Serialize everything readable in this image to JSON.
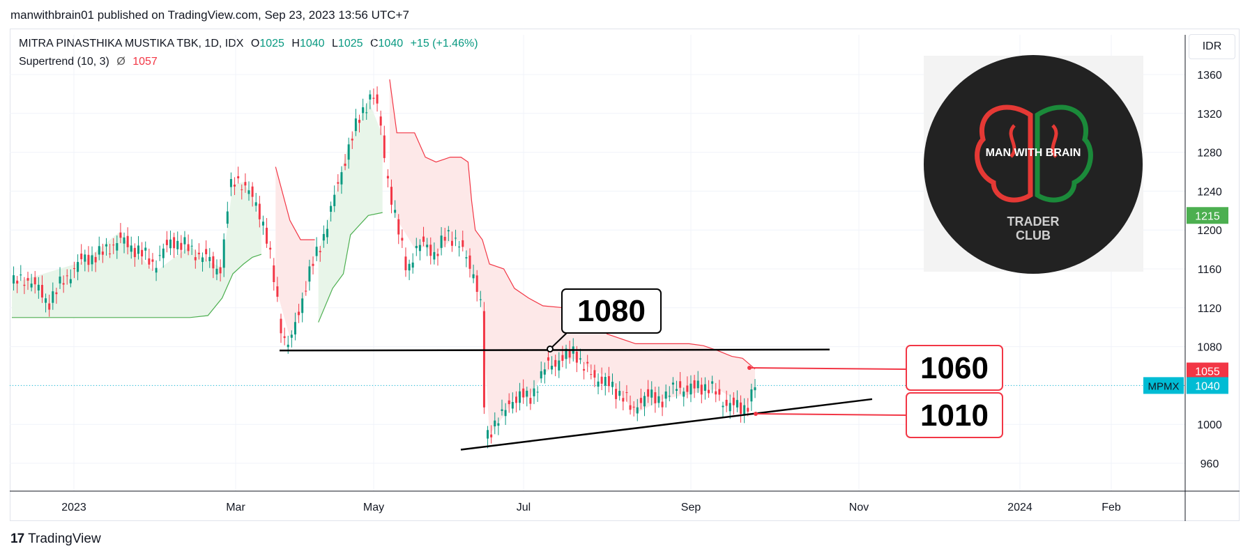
{
  "header": {
    "publish_line": "manwithbrain01 published on TradingView.com, Sep 23, 2023 13:56 UTC+7"
  },
  "legend": {
    "symbol_line": "MITRA PINASTHIKA MUSTIKA TBK, 1D, IDX",
    "o_key": "O",
    "o_val": "1025",
    "h_key": "H",
    "h_val": "1040",
    "l_key": "L",
    "l_val": "1025",
    "c_key": "C",
    "c_val": "1040",
    "change": "+15 (+1.46%)",
    "indicator": "Supertrend (10, 3)",
    "indicator_symbol": "Ø",
    "indicator_value": "1057"
  },
  "currency_button": "IDR",
  "logo": {
    "line1": "MAN WITH BRAIN",
    "line2": "TRADER",
    "line3": "CLUB"
  },
  "footer": {
    "brand": "TradingView",
    "brand_mark": "17"
  },
  "colors": {
    "up": "#089981",
    "down": "#f23645",
    "up_fill": "#e8f5e9",
    "down_fill": "#fde8e8",
    "green_tag": "#4caf50",
    "red_tag": "#f23645",
    "cyan_tag": "#00bcd4"
  },
  "chart_data": {
    "type": "candlestick",
    "symbol": "MPMX",
    "timeframe": "1D",
    "y_axis": {
      "ticks": [
        "1360",
        "1320",
        "1280",
        "1240",
        "1200",
        "1160",
        "1120",
        "1080",
        "1040",
        "1000",
        "960"
      ],
      "range": [
        935,
        1380
      ]
    },
    "x_axis": {
      "ticks": [
        "2023",
        "Mar",
        "May",
        "Jul",
        "Sep",
        "Nov",
        "2024",
        "Feb"
      ]
    },
    "price_tags": [
      {
        "label": "1215",
        "value": 1215,
        "color": "green"
      },
      {
        "label": "1055",
        "value": 1055,
        "color": "red"
      },
      {
        "label": "1040",
        "value": 1040,
        "color": "cyan"
      }
    ],
    "symbol_tag": "MPMX",
    "annotations": [
      {
        "text": "1080"
      },
      {
        "text": "1060"
      },
      {
        "text": "1010"
      }
    ],
    "last_close": 1040,
    "supertrend_last": 1057
  }
}
